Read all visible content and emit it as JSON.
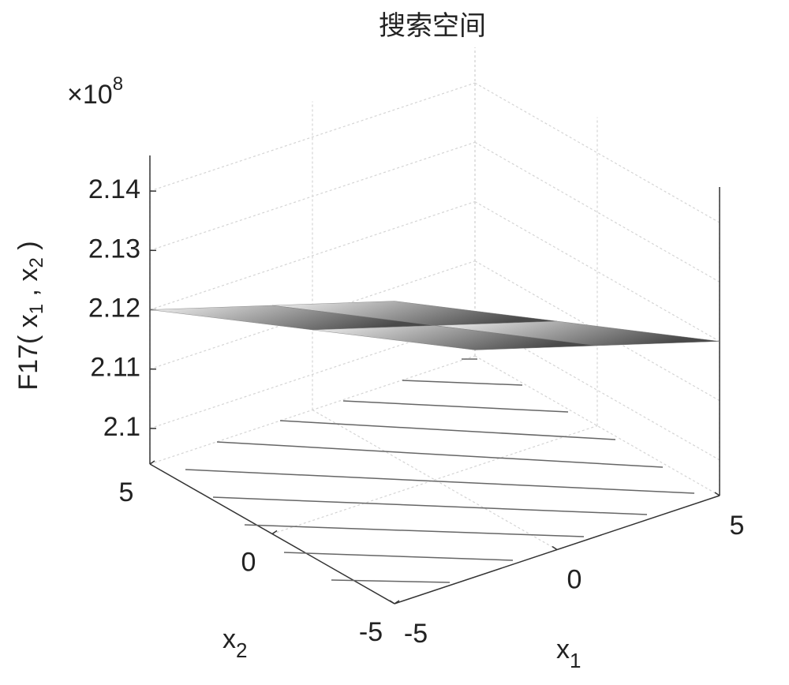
{
  "chart_data": {
    "type": "surface",
    "title": "搜索空间",
    "exponent_label": {
      "base": "×10",
      "power": "8"
    },
    "zlabel": {
      "parts": [
        "F17( x",
        "1",
        " , x",
        "2",
        " )"
      ]
    },
    "xlabel": {
      "parts": [
        "x",
        "1"
      ]
    },
    "ylabel": {
      "parts": [
        "x",
        "2"
      ]
    },
    "x": [
      -5,
      0,
      5
    ],
    "y": [
      -5,
      0,
      5
    ],
    "z": [
      [
        2.145,
        2.1325,
        2.12
      ],
      [
        2.1325,
        2.12,
        2.1075
      ],
      [
        2.12,
        2.1075,
        2.095
      ]
    ],
    "xlim": [
      -5,
      5
    ],
    "ylim": [
      -5,
      5
    ],
    "zlim": [
      2.094,
      2.146
    ],
    "xticks": [
      -5,
      0,
      5
    ],
    "yticks": [
      -5,
      0,
      5
    ],
    "zticks": [
      2.1,
      2.11,
      2.12,
      2.13,
      2.14
    ],
    "grid": true,
    "colormap": [
      "#f2f2f2",
      "#4a4a4a"
    ]
  }
}
